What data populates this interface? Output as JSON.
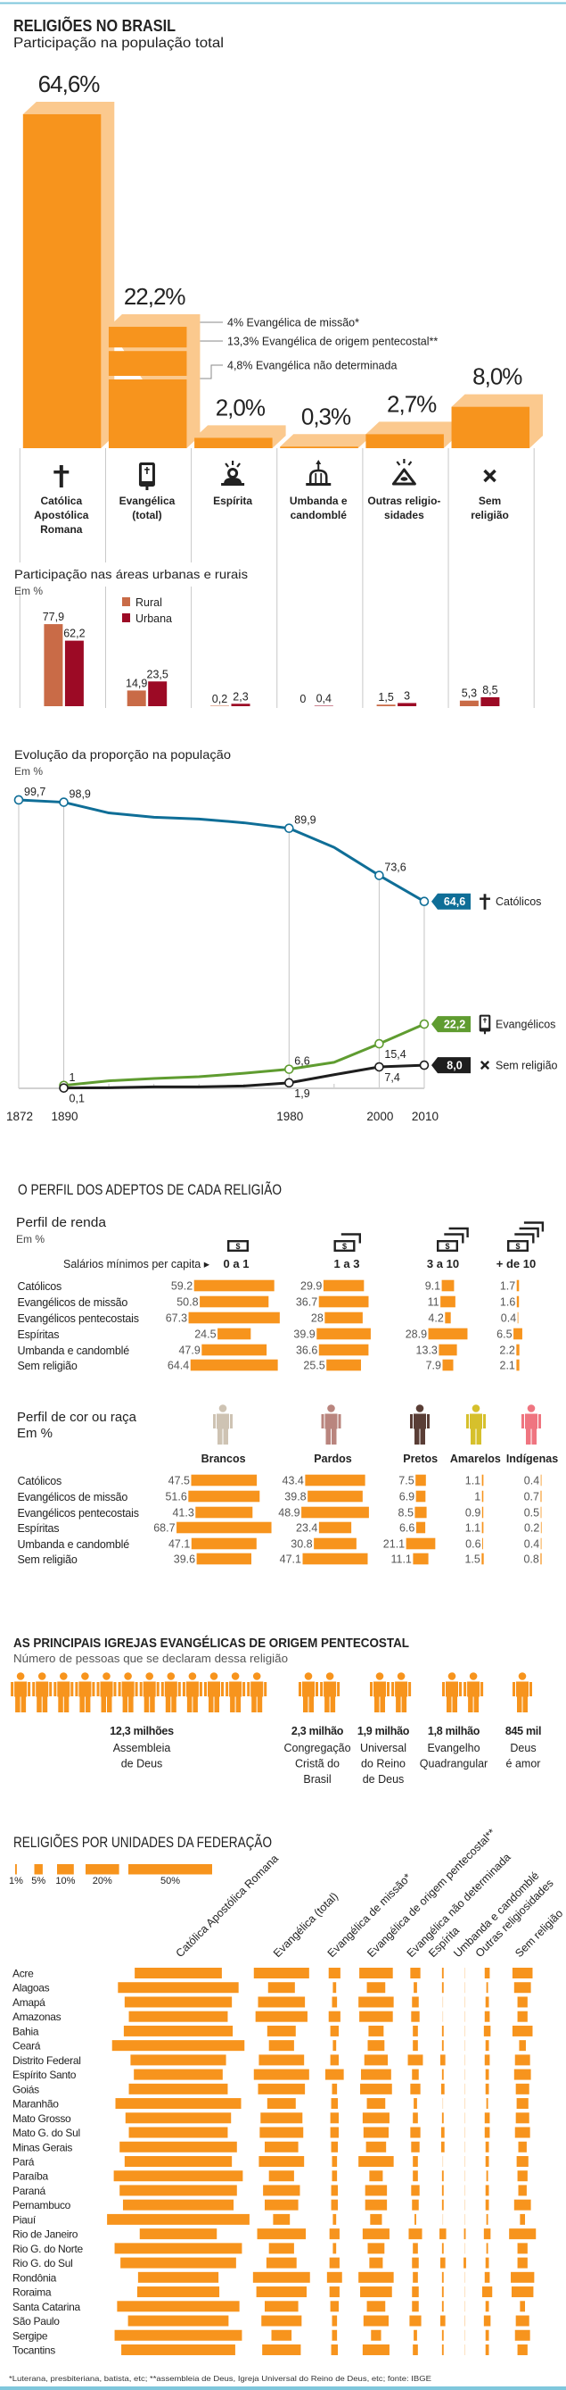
{
  "colors": {
    "bar": "#f7941d",
    "bar_depth": "#fbc98e",
    "rule": "#7fc7dc",
    "text": "#222222"
  },
  "footnote": "*Luterana, presbiteriana, batista, etc; **assembleia de Deus, Igreja Universal do Reino de Deus, etc; fonte: IBGE",
  "chart_data": [
    {
      "type": "bar",
      "title": "RELIGIÕES NO BRASIL",
      "subtitle": "Participação na população total",
      "unit": "%",
      "categories": [
        "Católica Apostólica Romana",
        "Evangélica (total)",
        "Espírita",
        "Umbanda e candomblé",
        "Outras religiosidades",
        "Sem religião"
      ],
      "category_lines": [
        [
          "Católica",
          "Apostólica",
          "Romana"
        ],
        [
          "Evangélica",
          "(total)"
        ],
        [
          "Espírita"
        ],
        [
          "Umbanda e",
          "candomblé"
        ],
        [
          "Outras religio-",
          "sidades"
        ],
        [
          "Sem",
          "religião"
        ]
      ],
      "icons": [
        "cross-icon",
        "bible-icon",
        "spiritist-icon",
        "temple-icon",
        "eye-triangle-icon",
        "x-mark-icon"
      ],
      "values": [
        64.6,
        22.2,
        2.0,
        0.3,
        2.7,
        8.0
      ],
      "value_labels": [
        "64,6%",
        "22,2%",
        "2,0%",
        "0,3%",
        "2,7%",
        "8,0%"
      ],
      "color": "#f7941d",
      "depth_color": "#fbc98e",
      "breakdown": {
        "category_index": 1,
        "segments_bottom_up": [
          {
            "name": "Evangélica de origem pentecostal**",
            "value": 13.3
          },
          {
            "name": "Evangélica não determinada",
            "value": 4.8
          },
          {
            "name": "Evangélica de missão*",
            "value": 4.0
          }
        ],
        "annotations": [
          "4% Evangélica de missão*",
          "13,3% Evangélica de origem pentecostal**",
          "4,8% Evangélica não determinada"
        ]
      }
    },
    {
      "type": "bar",
      "title": "Participação nas áreas urbanas e rurais",
      "ylabel": "Em %",
      "categories": [
        "Católica Apostólica Romana",
        "Evangélica (total)",
        "Espírita",
        "Umbanda e candomblé",
        "Outras religiosidades",
        "Sem religião"
      ],
      "legend": "top-left",
      "series": [
        {
          "name": "Rural",
          "color": "#c96b47",
          "values": [
            77.9,
            14.9,
            0.2,
            0,
            1.5,
            5.3
          ],
          "labels": [
            "77,9",
            "14,9",
            "0,2",
            "0",
            "1,5",
            "5,3"
          ]
        },
        {
          "name": "Urbana",
          "color": "#9c0a25",
          "values": [
            62.2,
            23.5,
            2.3,
            0.4,
            3,
            8.5
          ],
          "labels": [
            "62,2",
            "23,5",
            "2,3",
            "0,4",
            "3",
            "8,5"
          ]
        }
      ]
    },
    {
      "type": "line",
      "title": "Evolução da proporção na população",
      "ylabel": "Em %",
      "x": [
        1872,
        1890,
        1940,
        1950,
        1960,
        1970,
        1980,
        1991,
        2000,
        2010
      ],
      "xticklabels": [
        "1872",
        "1890",
        "1980",
        "2000",
        "2010"
      ],
      "ylim": [
        0,
        100
      ],
      "grid": "vertical at labeled years",
      "series": [
        {
          "name": "Católicos",
          "color": "#0f6e97",
          "icon": "cross-icon",
          "values": [
            99.7,
            98.9,
            95.2,
            93.7,
            93.1,
            91.8,
            89.9,
            83.3,
            73.6,
            64.6
          ],
          "labels": [
            {
              "x": 1872,
              "text": "99,7",
              "pos": "above-right"
            },
            {
              "x": 1890,
              "text": "98,9",
              "pos": "above-right"
            },
            {
              "x": 1980,
              "text": "89,9",
              "pos": "above-right"
            },
            {
              "x": 2000,
              "text": "73,6",
              "pos": "above-right"
            }
          ],
          "end_label": "64,6"
        },
        {
          "name": "Evangélicos",
          "color": "#5f9c30",
          "icon": "bible-icon",
          "values": [
            null,
            1.0,
            2.6,
            3.4,
            4.0,
            5.2,
            6.6,
            9.0,
            15.4,
            22.2
          ],
          "labels": [
            {
              "x": 1890,
              "text": "1",
              "pos": "above-right"
            },
            {
              "x": 1980,
              "text": "6,6",
              "pos": "above-right"
            },
            {
              "x": 2000,
              "text": "15,4",
              "pos": "below-right"
            }
          ],
          "end_label": "22,2"
        },
        {
          "name": "Sem religião",
          "color": "#1e1e1e",
          "icon": "x-mark-icon",
          "values": [
            null,
            0.1,
            0.2,
            0.5,
            0.5,
            0.8,
            1.9,
            4.7,
            7.4,
            8.0
          ],
          "labels": [
            {
              "x": 1890,
              "text": "0,1",
              "pos": "below-right"
            },
            {
              "x": 1980,
              "text": "1,9",
              "pos": "below-right"
            },
            {
              "x": 2000,
              "text": "7,4",
              "pos": "below-right"
            }
          ],
          "end_label": "8,0"
        }
      ]
    },
    {
      "type": "bar",
      "section_title": "O PERFIL DOS ADEPTOS DE CADA RELIGIÃO",
      "title": "Perfil de renda",
      "ylabel": "Em %",
      "axis_label": "Salários mínimos per capita ▸",
      "note_symbol": "$",
      "columns": [
        {
          "label": "0 a 1",
          "notes": 1
        },
        {
          "label": "1 a 3",
          "notes": 2
        },
        {
          "label": "3 a 10",
          "notes": 3
        },
        {
          "label": "+ de 10",
          "notes": 4
        }
      ],
      "rows": [
        {
          "name": "Católicos",
          "values": [
            59.2,
            29.9,
            9.1,
            1.7
          ]
        },
        {
          "name": "Evangélicos de missão",
          "values": [
            50.8,
            36.7,
            11,
            1.6
          ]
        },
        {
          "name": "Evangélicos pentecostais",
          "values": [
            67.3,
            28,
            4.2,
            0.4
          ]
        },
        {
          "name": "Espíritas",
          "values": [
            24.5,
            39.9,
            28.9,
            6.5
          ]
        },
        {
          "name": "Umbanda e candomblé",
          "values": [
            47.9,
            36.6,
            13.3,
            2.2
          ]
        },
        {
          "name": "Sem religião",
          "values": [
            64.4,
            25.5,
            7.9,
            2.1
          ]
        }
      ]
    },
    {
      "type": "bar",
      "title": "Perfil de cor ou raça",
      "ylabel": "Em %",
      "columns": [
        {
          "label": "Brancos",
          "color": "#cec3b3"
        },
        {
          "label": "Pardos",
          "color": "#b9857e"
        },
        {
          "label": "Pretos",
          "color": "#5a3e36"
        },
        {
          "label": "Amarelos",
          "color": "#d6c02c"
        },
        {
          "label": "Indígenas",
          "color": "#ef7580"
        }
      ],
      "rows": [
        {
          "name": "Católicos",
          "values": [
            47.5,
            43.4,
            7.5,
            1.1,
            0.4
          ]
        },
        {
          "name": "Evangélicos de missão",
          "values": [
            51.6,
            39.8,
            6.9,
            1,
            0.7
          ]
        },
        {
          "name": "Evangélicos pentecostais",
          "values": [
            41.3,
            48.9,
            8.5,
            0.9,
            0.5
          ]
        },
        {
          "name": "Espíritas",
          "values": [
            68.7,
            23.4,
            6.6,
            1.1,
            0.2
          ]
        },
        {
          "name": "Umbanda e candomblé",
          "values": [
            47.1,
            30.8,
            21.1,
            0.6,
            0.4
          ]
        },
        {
          "name": "Sem religião",
          "values": [
            39.6,
            47.1,
            11.1,
            1.5,
            0.8
          ]
        }
      ]
    },
    {
      "type": "bar",
      "title": "AS PRINCIPAIS IGREJAS EVANGÉLICAS DE ORIGEM PENTECOSTAL",
      "subtitle": "Número de pessoas que se declaram dessa religião",
      "color": "#f7941d",
      "items": [
        {
          "name": "Assembleia de Deus",
          "name_lines": [
            "Assembleia",
            "de Deus"
          ],
          "value_millions": 12.3,
          "value_label": "12,3 milhões"
        },
        {
          "name": "Congregação Cristã do Brasil",
          "name_lines": [
            "Congregação",
            "Cristã do",
            "Brasil"
          ],
          "value_millions": 2.3,
          "value_label": "2,3 milhão"
        },
        {
          "name": "Universal do Reino de Deus",
          "name_lines": [
            "Universal",
            "do Reino",
            "de Deus"
          ],
          "value_millions": 1.9,
          "value_label": "1,9 milhão"
        },
        {
          "name": "Evangelho Quadrangular",
          "name_lines": [
            "Evangelho",
            "Quadrangular"
          ],
          "value_millions": 1.8,
          "value_label": "1,8 milhão"
        },
        {
          "name": "Deus é amor",
          "name_lines": [
            "Deus",
            "é amor"
          ],
          "value_millions": 0.845,
          "value_label": "845 mil"
        }
      ]
    },
    {
      "type": "bar",
      "title": "RELIGIÕES POR UNIDADES DA FEDERAÇÃO",
      "unit": "%",
      "legend": [
        {
          "label": "1%",
          "value": 1
        },
        {
          "label": "5%",
          "value": 5
        },
        {
          "label": "10%",
          "value": 10
        },
        {
          "label": "20%",
          "value": 20
        },
        {
          "label": "50%",
          "value": 50
        }
      ],
      "columns": [
        "Católica Apostólica Romana",
        "Evangélica (total)",
        "Evangélica de missão*",
        "Evangélica de origem pentecostal**",
        "Evangélica não determinada",
        "Espírita",
        "Umbanda e candomblé",
        "Outras religiosidades",
        "Sem religião"
      ],
      "rows": [
        {
          "state": "Acre",
          "values": [
            52,
            33,
            7,
            20,
            6,
            1,
            0.1,
            3,
            12
          ]
        },
        {
          "state": "Alagoas",
          "values": [
            72,
            16,
            2,
            11,
            2,
            1,
            0.1,
            1,
            10
          ]
        },
        {
          "state": "Amapá",
          "values": [
            64,
            28,
            3,
            21,
            4,
            0.3,
            0.1,
            2,
            6
          ]
        },
        {
          "state": "Amazonas",
          "values": [
            59,
            31,
            7,
            20,
            5,
            0.3,
            0.1,
            3,
            6
          ]
        },
        {
          "state": "Bahia",
          "values": [
            65,
            17,
            5,
            9,
            3,
            1,
            0.3,
            4,
            12
          ]
        },
        {
          "state": "Ceará",
          "values": [
            79,
            15,
            2,
            10,
            3,
            1,
            0.1,
            2,
            4
          ]
        },
        {
          "state": "Distrito Federal",
          "values": [
            57,
            27,
            5,
            14,
            9,
            3,
            0.3,
            3,
            9
          ]
        },
        {
          "state": "Espírito Santo",
          "values": [
            53,
            33,
            11,
            18,
            4,
            1,
            0.1,
            2,
            10
          ]
        },
        {
          "state": "Goiás",
          "values": [
            59,
            28,
            3,
            19,
            6,
            2,
            0.1,
            2,
            8
          ]
        },
        {
          "state": "Maranhão",
          "values": [
            75,
            17,
            4,
            11,
            2,
            0.3,
            0.1,
            1,
            7
          ]
        },
        {
          "state": "Mato Grosso",
          "values": [
            63,
            25,
            5,
            16,
            3,
            1,
            0.1,
            3,
            8
          ]
        },
        {
          "state": "Mato G. do Sul",
          "values": [
            59,
            26,
            5,
            15,
            6,
            2,
            0.2,
            3,
            9
          ]
        },
        {
          "state": "Minas Gerais",
          "values": [
            70,
            20,
            4,
            12,
            5,
            2,
            0.1,
            2,
            5
          ]
        },
        {
          "state": "Pará",
          "values": [
            64,
            27,
            3,
            21,
            3,
            0.3,
            0.1,
            2,
            7
          ]
        },
        {
          "state": "Paraíba",
          "values": [
            77,
            15,
            3,
            8,
            3,
            1,
            0.1,
            1,
            6
          ]
        },
        {
          "state": "Paraná",
          "values": [
            70,
            22,
            4,
            13,
            5,
            1,
            0.2,
            2,
            5
          ]
        },
        {
          "state": "Pernambuco",
          "values": [
            66,
            20,
            4,
            13,
            4,
            1,
            0.2,
            2,
            10
          ]
        },
        {
          "state": "Piauí",
          "values": [
            85,
            10,
            2,
            7,
            1,
            0.3,
            0.0,
            1,
            3
          ]
        },
        {
          "state": "Rio de Janeiro",
          "values": [
            46,
            29,
            6,
            16,
            8,
            4,
            1.0,
            4,
            16
          ]
        },
        {
          "state": "Rio G. do Norte",
          "values": [
            76,
            15,
            2,
            10,
            3,
            1,
            0.1,
            1,
            6
          ]
        },
        {
          "state": "Rio G. do Sul",
          "values": [
            69,
            18,
            6,
            8,
            4,
            3,
            1.5,
            2,
            6
          ]
        },
        {
          "state": "Rondônia",
          "values": [
            48,
            34,
            9,
            21,
            3,
            1,
            0.1,
            3,
            14
          ]
        },
        {
          "state": "Roraima",
          "values": [
            49,
            30,
            6,
            19,
            4,
            1,
            0.1,
            6,
            13
          ]
        },
        {
          "state": "Santa Catarina",
          "values": [
            73,
            20,
            5,
            11,
            4,
            1,
            0.2,
            2,
            3
          ]
        },
        {
          "state": "São Paulo",
          "values": [
            60,
            24,
            3,
            15,
            7,
            3,
            0.4,
            4,
            8
          ]
        },
        {
          "state": "Sergipe",
          "values": [
            76,
            12,
            3,
            6,
            2,
            1,
            0.2,
            2,
            9
          ]
        },
        {
          "state": "Tocantins",
          "values": [
            68,
            23,
            4,
            16,
            3,
            1,
            0.1,
            2,
            6
          ]
        }
      ]
    }
  ]
}
